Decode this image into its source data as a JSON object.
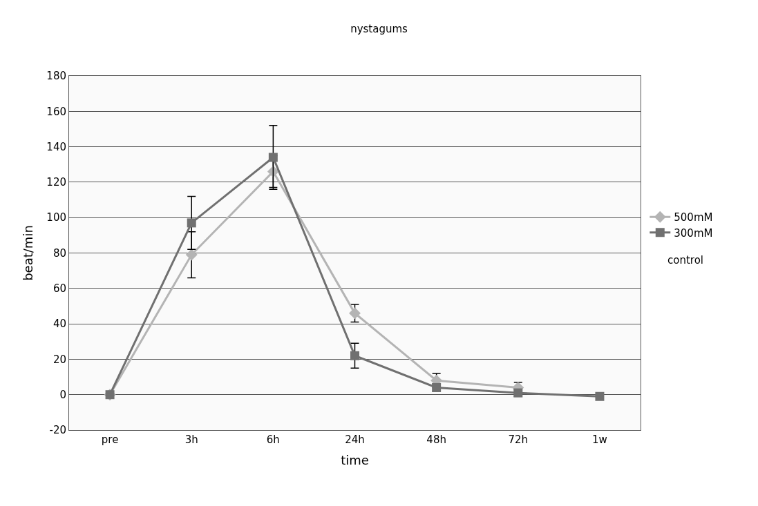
{
  "chart_data": {
    "type": "line",
    "title": "nystagums",
    "xlabel": "time",
    "ylabel": "beat/min",
    "categories": [
      "pre",
      "3h",
      "6h",
      "24h",
      "48h",
      "72h",
      "1w"
    ],
    "series": [
      {
        "name": "500mM",
        "color": "#b4b4b4",
        "marker": "diamond",
        "values": [
          0,
          79,
          126,
          46,
          8,
          4,
          null
        ],
        "errors": [
          null,
          13,
          9,
          5,
          4,
          3,
          null
        ]
      },
      {
        "name": "300mM",
        "color": "#707070",
        "marker": "square",
        "values": [
          0,
          97,
          134,
          22,
          4,
          1,
          -1
        ],
        "errors": [
          null,
          15,
          18,
          7,
          2,
          2,
          null
        ]
      }
    ],
    "annotations": [
      "control"
    ],
    "ylim": [
      -20,
      180
    ],
    "yticks": [
      -20,
      0,
      20,
      40,
      60,
      80,
      100,
      120,
      140,
      160,
      180
    ],
    "grid": "y",
    "legend": "right"
  }
}
